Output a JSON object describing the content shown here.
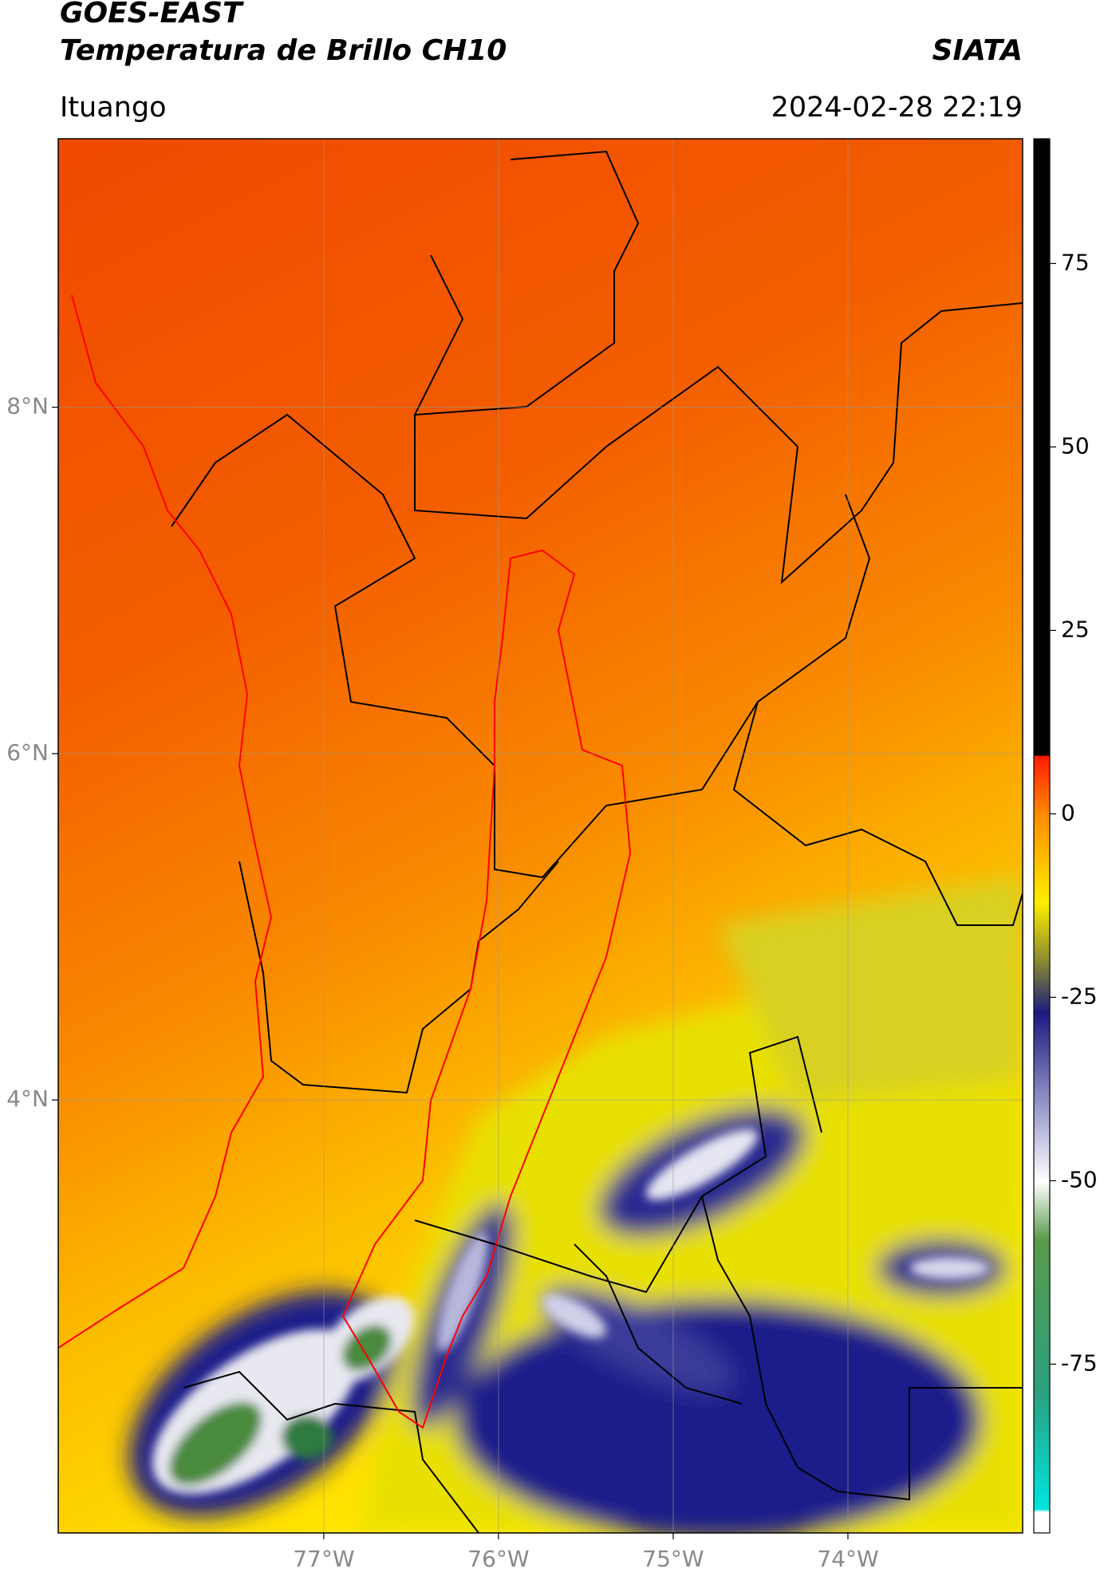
{
  "header": {
    "title": "GOES-EAST",
    "subtitle": "Temperatura de Brillo CH10",
    "brand": "SIATA",
    "location": "Ituango",
    "timestamp": "2024-02-28 22:19"
  },
  "map": {
    "lonlim": [
      -78.52,
      -73.0
    ],
    "latlim": [
      1.5,
      9.55
    ],
    "lonticks": [
      {
        "value": -77,
        "label": "77°W"
      },
      {
        "value": -76,
        "label": "76°W"
      },
      {
        "value": -75,
        "label": "75°W"
      },
      {
        "value": -74,
        "label": "74°W"
      }
    ],
    "latticks": [
      {
        "value": 4,
        "label": "4°N"
      },
      {
        "value": 6,
        "label": "6°N"
      },
      {
        "value": 8,
        "label": "8°N"
      }
    ],
    "grid": true
  },
  "colorbar": {
    "lim": [
      -98,
      92
    ],
    "ticks": [
      -75,
      -50,
      -25,
      0,
      25,
      50,
      75
    ]
  }
}
